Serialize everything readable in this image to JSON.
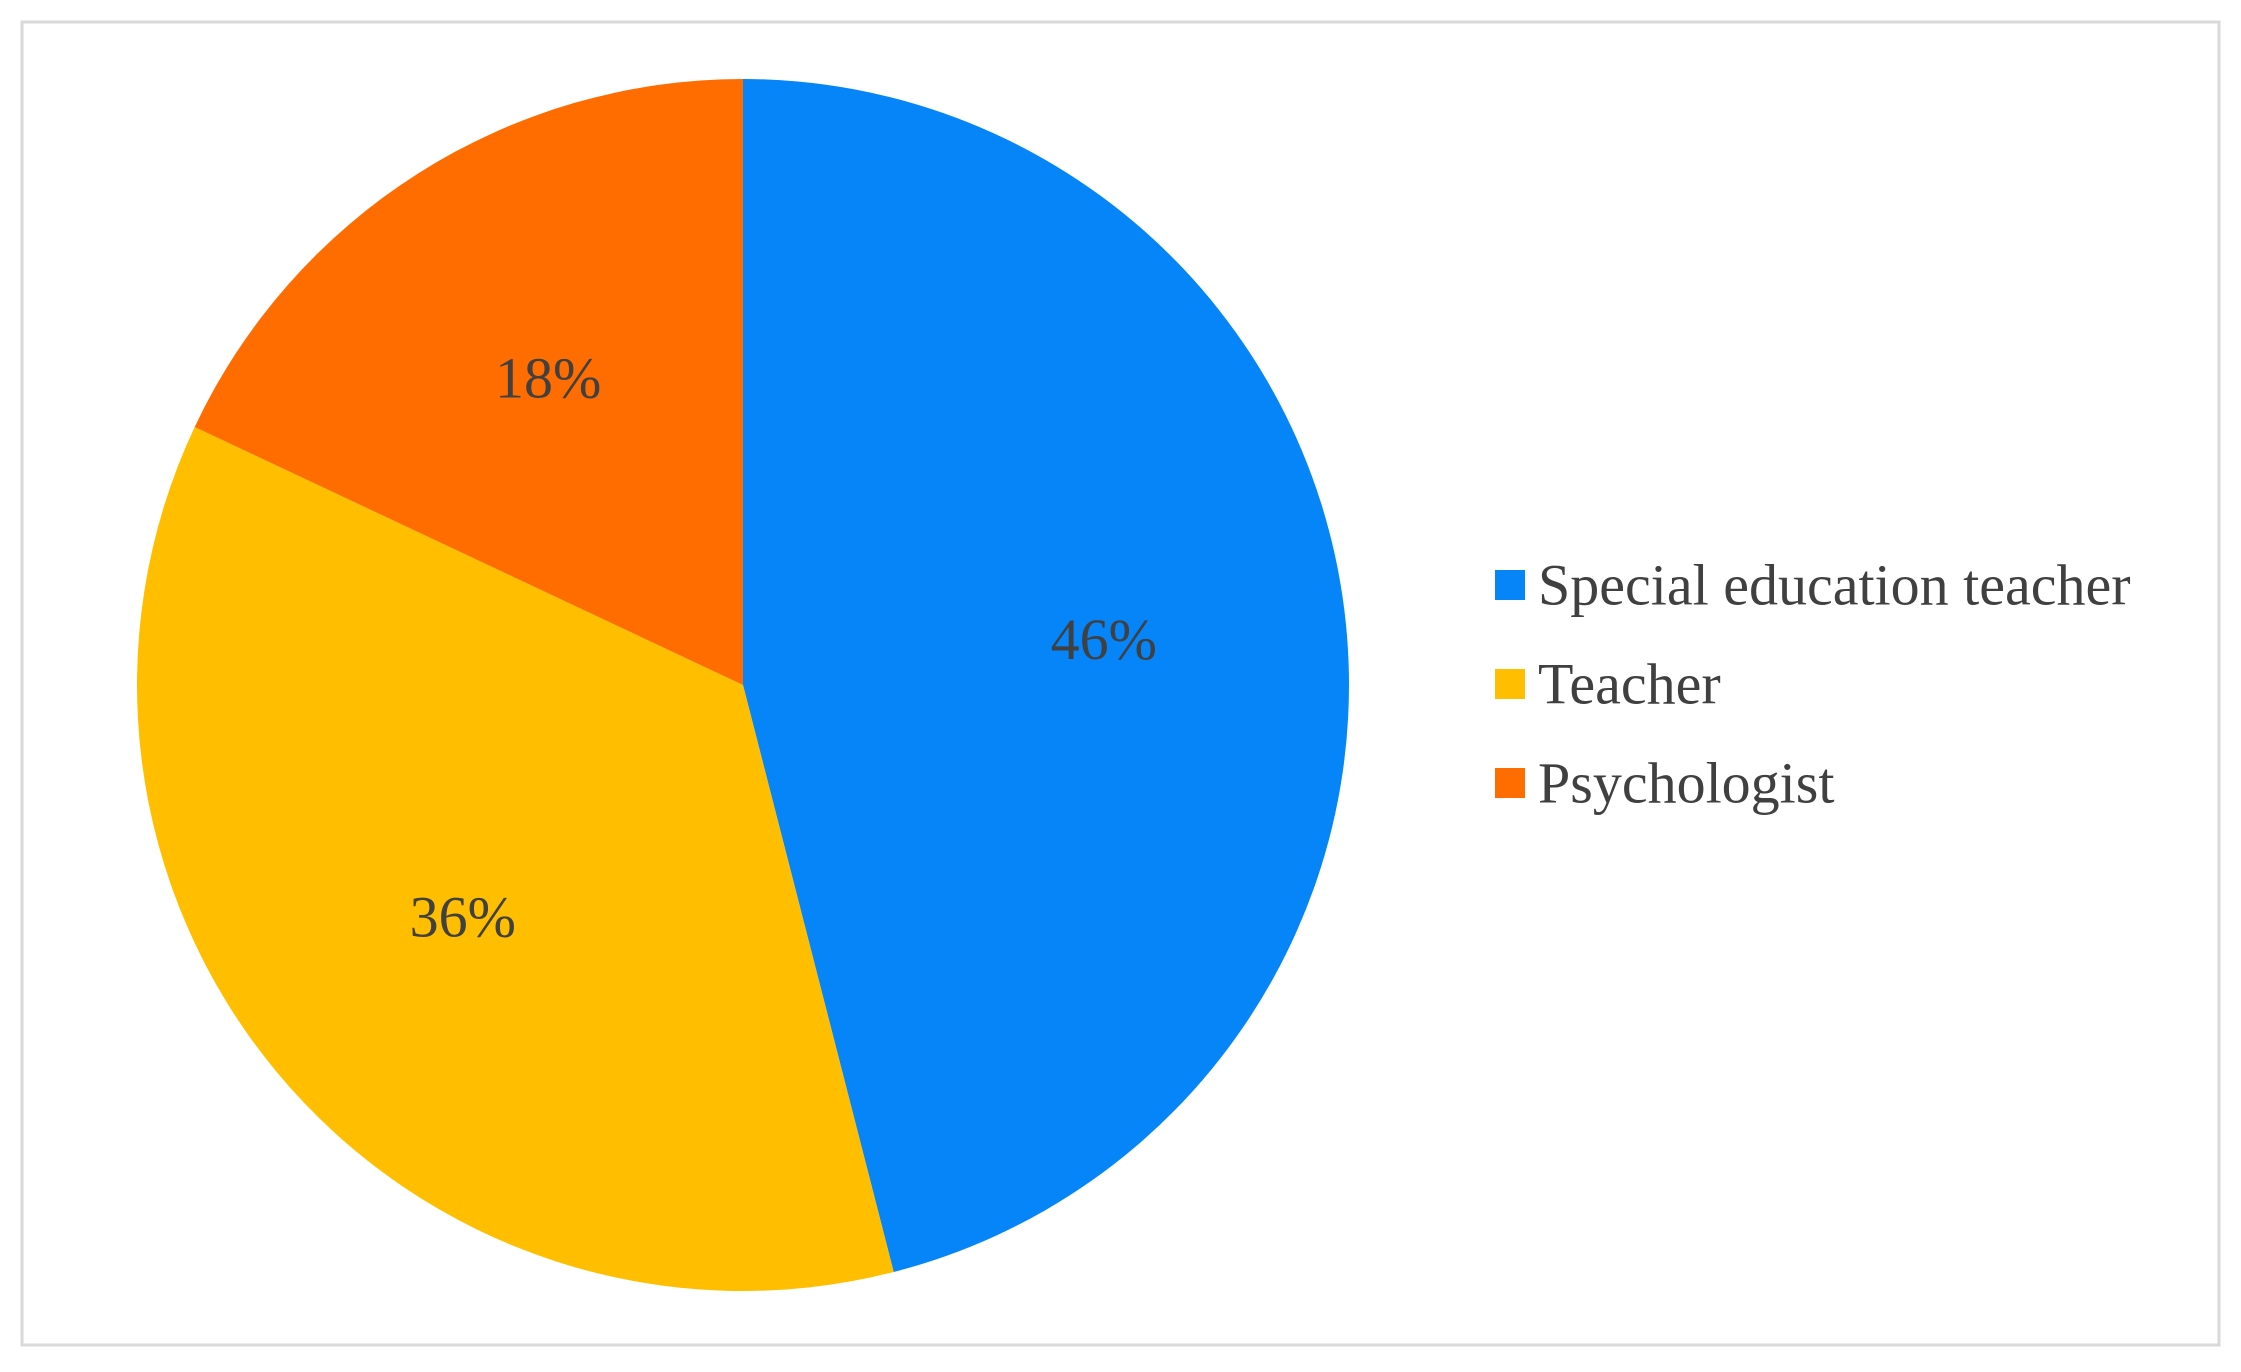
{
  "chart_data": {
    "type": "pie",
    "title": "",
    "categories": [
      "Special education teacher",
      "Teacher",
      "Psychologist"
    ],
    "values": [
      46,
      36,
      18
    ],
    "labels": [
      "46%",
      "36%",
      "18%"
    ],
    "colors": [
      "#0585F8",
      "#FFBE00",
      "#FF6D00"
    ],
    "start_angle": "12 o'clock",
    "direction": "clockwise",
    "legend_position": "right",
    "border_color": "#D9D9D9"
  }
}
